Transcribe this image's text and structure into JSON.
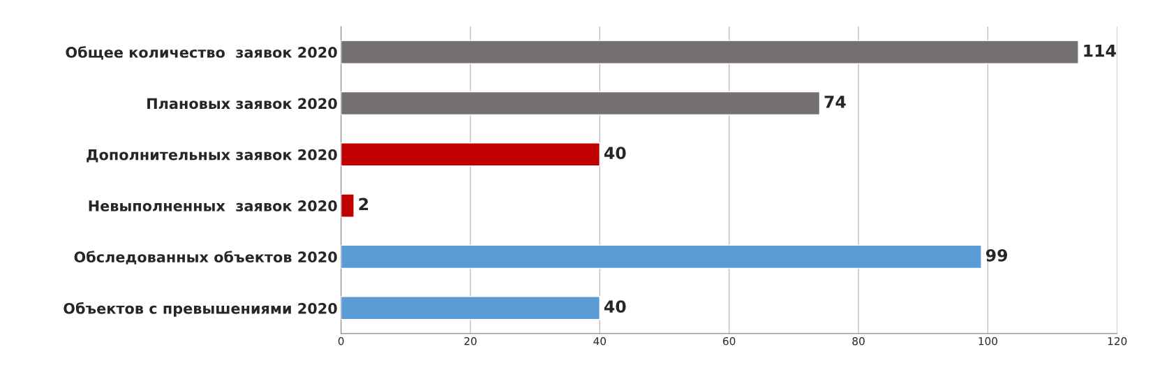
{
  "chart_data": {
    "type": "bar",
    "orientation": "horizontal",
    "categories": [
      "Общее количество  заявок 2020",
      "Плановых заявок 2020",
      "Дополнительных заявок 2020",
      "Невыполненных  заявок 2020",
      "Обследованных объектов 2020",
      "Объектов с превышениями 2020"
    ],
    "values": [
      114,
      74,
      40,
      2,
      99,
      40
    ],
    "colors": [
      "#767171",
      "#767171",
      "#c00000",
      "#c00000",
      "#5b9bd5",
      "#5b9bd5"
    ],
    "xlim": [
      0,
      120
    ],
    "xticks": [
      0,
      20,
      40,
      60,
      80,
      100,
      120
    ],
    "grid": "x",
    "data_labels": true
  }
}
